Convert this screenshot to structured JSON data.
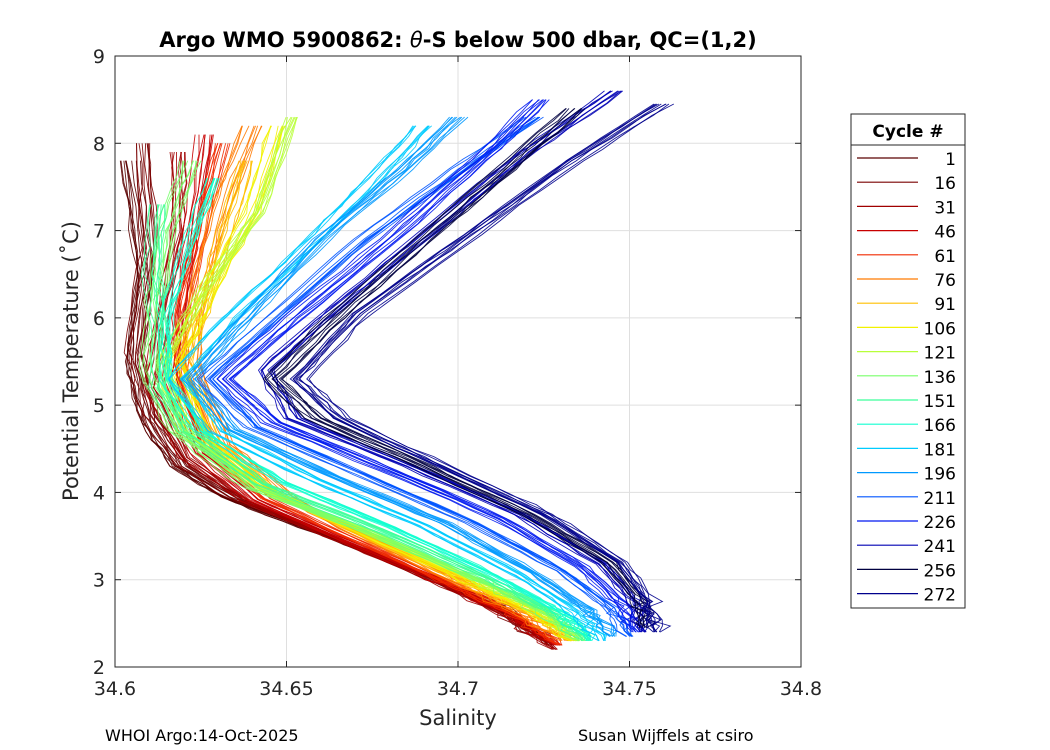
{
  "chart_data": {
    "type": "line",
    "title_prefix": "Argo WMO 5900862: ",
    "title_theta": "θ",
    "title_suffix": "-S below 500 dbar,  QC=(1,2)",
    "xlabel": "Salinity",
    "ylabel": "Potential Temperature (˚C)",
    "xlim": [
      34.6,
      34.8
    ],
    "ylim": [
      2,
      9
    ],
    "xticks": [
      34.6,
      34.65,
      34.7,
      34.75,
      34.8
    ],
    "xtick_labels": [
      "34.6",
      "34.65",
      "34.7",
      "34.75",
      "34.8"
    ],
    "yticks": [
      2,
      3,
      4,
      5,
      6,
      7,
      8,
      9
    ],
    "ytick_labels": [
      "2",
      "3",
      "4",
      "5",
      "6",
      "7",
      "8",
      "9"
    ],
    "grid": true,
    "legend_title": "Cycle #",
    "legend_position": "right",
    "legend": [
      {
        "cycle": "1",
        "color": "#5a0000"
      },
      {
        "cycle": "16",
        "color": "#7a0000"
      },
      {
        "cycle": "31",
        "color": "#a00000"
      },
      {
        "cycle": "46",
        "color": "#c80000"
      },
      {
        "cycle": "61",
        "color": "#f02a00"
      },
      {
        "cycle": "76",
        "color": "#ff7a00"
      },
      {
        "cycle": "91",
        "color": "#ffbf00"
      },
      {
        "cycle": "106",
        "color": "#f2f200"
      },
      {
        "cycle": "121",
        "color": "#b8ff3a"
      },
      {
        "cycle": "136",
        "color": "#78ff6a"
      },
      {
        "cycle": "151",
        "color": "#3cff9a"
      },
      {
        "cycle": "166",
        "color": "#12ffd0"
      },
      {
        "cycle": "181",
        "color": "#00ccff"
      },
      {
        "cycle": "196",
        "color": "#0099ff"
      },
      {
        "cycle": "211",
        "color": "#0055ff"
      },
      {
        "cycle": "226",
        "color": "#0018f0"
      },
      {
        "cycle": "241",
        "color": "#0000b4"
      },
      {
        "cycle": "256",
        "color": "#000040"
      },
      {
        "cycle": "272",
        "color": "#00008c"
      }
    ],
    "series": [
      {
        "name": "1",
        "color": "#5a0000",
        "points": [
          [
            34.604,
            7.8
          ],
          [
            34.608,
            6.5
          ],
          [
            34.605,
            5.5
          ],
          [
            34.609,
            4.8
          ],
          [
            34.618,
            4.3
          ],
          [
            34.632,
            3.95
          ],
          [
            34.655,
            3.6
          ],
          [
            34.688,
            3.1
          ],
          [
            34.712,
            2.7
          ],
          [
            34.726,
            2.3
          ]
        ]
      },
      {
        "name": "16",
        "color": "#7a0000",
        "points": [
          [
            34.608,
            8.0
          ],
          [
            34.61,
            6.8
          ],
          [
            34.606,
            5.6
          ],
          [
            34.61,
            4.9
          ],
          [
            34.62,
            4.3
          ],
          [
            34.636,
            3.92
          ],
          [
            34.66,
            3.55
          ],
          [
            34.69,
            3.05
          ],
          [
            34.712,
            2.65
          ],
          [
            34.727,
            2.25
          ]
        ]
      },
      {
        "name": "31",
        "color": "#a00000",
        "points": [
          [
            34.618,
            7.9
          ],
          [
            34.618,
            7.0
          ],
          [
            34.613,
            6.0
          ],
          [
            34.61,
            5.2
          ],
          [
            34.62,
            4.4
          ],
          [
            34.638,
            3.9
          ],
          [
            34.662,
            3.5
          ],
          [
            34.692,
            3.0
          ],
          [
            34.714,
            2.6
          ],
          [
            34.728,
            2.2
          ]
        ]
      },
      {
        "name": "46",
        "color": "#c80000",
        "points": [
          [
            34.626,
            8.1
          ],
          [
            34.622,
            7.0
          ],
          [
            34.618,
            6.0
          ],
          [
            34.616,
            5.3
          ],
          [
            34.624,
            4.45
          ],
          [
            34.64,
            3.92
          ],
          [
            34.664,
            3.5
          ],
          [
            34.694,
            3.0
          ],
          [
            34.715,
            2.6
          ],
          [
            34.729,
            2.25
          ]
        ]
      },
      {
        "name": "61",
        "color": "#f02a00",
        "points": [
          [
            34.632,
            8.0
          ],
          [
            34.626,
            7.0
          ],
          [
            34.62,
            6.0
          ],
          [
            34.62,
            5.4
          ],
          [
            34.628,
            4.5
          ],
          [
            34.645,
            3.93
          ],
          [
            34.668,
            3.5
          ],
          [
            34.697,
            2.98
          ],
          [
            34.717,
            2.6
          ],
          [
            34.73,
            2.25
          ]
        ]
      },
      {
        "name": "76",
        "color": "#ff7a00",
        "points": [
          [
            34.64,
            8.2
          ],
          [
            34.63,
            7.2
          ],
          [
            34.624,
            6.2
          ],
          [
            34.622,
            5.5
          ],
          [
            34.632,
            4.55
          ],
          [
            34.65,
            3.95
          ],
          [
            34.672,
            3.5
          ],
          [
            34.7,
            2.98
          ],
          [
            34.72,
            2.6
          ],
          [
            34.731,
            2.3
          ]
        ]
      },
      {
        "name": "91",
        "color": "#ffbf00",
        "points": [
          [
            34.638,
            7.8
          ],
          [
            34.632,
            7.0
          ],
          [
            34.626,
            6.2
          ],
          [
            34.62,
            5.5
          ],
          [
            34.628,
            4.6
          ],
          [
            34.646,
            4.0
          ],
          [
            34.672,
            3.52
          ],
          [
            34.702,
            2.98
          ],
          [
            34.722,
            2.6
          ],
          [
            34.733,
            2.3
          ]
        ]
      },
      {
        "name": "106",
        "color": "#f2f200",
        "points": [
          [
            34.648,
            8.2
          ],
          [
            34.64,
            7.2
          ],
          [
            34.628,
            6.3
          ],
          [
            34.618,
            5.5
          ],
          [
            34.626,
            4.6
          ],
          [
            34.646,
            4.0
          ],
          [
            34.674,
            3.52
          ],
          [
            34.704,
            2.98
          ],
          [
            34.724,
            2.6
          ],
          [
            34.734,
            2.3
          ]
        ]
      },
      {
        "name": "121",
        "color": "#b8ff3a",
        "points": [
          [
            34.652,
            8.3
          ],
          [
            34.642,
            7.2
          ],
          [
            34.626,
            6.3
          ],
          [
            34.614,
            5.5
          ],
          [
            34.62,
            4.7
          ],
          [
            34.642,
            4.05
          ],
          [
            34.674,
            3.55
          ],
          [
            34.706,
            3.0
          ],
          [
            34.726,
            2.6
          ],
          [
            34.735,
            2.3
          ]
        ]
      },
      {
        "name": "136",
        "color": "#78ff6a",
        "points": [
          [
            34.622,
            7.8
          ],
          [
            34.615,
            7.0
          ],
          [
            34.612,
            6.2
          ],
          [
            34.61,
            5.4
          ],
          [
            34.618,
            4.7
          ],
          [
            34.64,
            4.05
          ],
          [
            34.674,
            3.55
          ],
          [
            34.706,
            3.0
          ],
          [
            34.727,
            2.6
          ],
          [
            34.736,
            2.3
          ]
        ]
      },
      {
        "name": "151",
        "color": "#3cff9a",
        "points": [
          [
            34.612,
            7.3
          ],
          [
            34.61,
            6.5
          ],
          [
            34.613,
            5.8
          ],
          [
            34.612,
            5.2
          ],
          [
            34.62,
            4.7
          ],
          [
            34.642,
            4.1
          ],
          [
            34.676,
            3.58
          ],
          [
            34.708,
            3.02
          ],
          [
            34.728,
            2.6
          ],
          [
            34.737,
            2.3
          ]
        ]
      },
      {
        "name": "166",
        "color": "#12ffd0",
        "points": [
          [
            34.628,
            7.6
          ],
          [
            34.62,
            6.8
          ],
          [
            34.614,
            6.0
          ],
          [
            34.614,
            5.3
          ],
          [
            34.624,
            4.7
          ],
          [
            34.648,
            4.12
          ],
          [
            34.68,
            3.6
          ],
          [
            34.71,
            3.05
          ],
          [
            34.73,
            2.62
          ],
          [
            34.738,
            2.3
          ]
        ]
      },
      {
        "name": "181",
        "color": "#00ccff",
        "points": [
          [
            34.69,
            8.2
          ],
          [
            34.676,
            7.6
          ],
          [
            34.656,
            6.8
          ],
          [
            34.634,
            6.0
          ],
          [
            34.618,
            5.3
          ],
          [
            34.63,
            4.7
          ],
          [
            34.658,
            4.15
          ],
          [
            34.69,
            3.62
          ],
          [
            34.718,
            3.05
          ],
          [
            34.735,
            2.62
          ],
          [
            34.742,
            2.3
          ]
        ]
      },
      {
        "name": "196",
        "color": "#0099ff",
        "points": [
          [
            34.7,
            8.3
          ],
          [
            34.684,
            7.7
          ],
          [
            34.66,
            6.9
          ],
          [
            34.638,
            6.0
          ],
          [
            34.622,
            5.3
          ],
          [
            34.634,
            4.72
          ],
          [
            34.664,
            4.18
          ],
          [
            34.696,
            3.65
          ],
          [
            34.722,
            3.08
          ],
          [
            34.738,
            2.65
          ],
          [
            34.745,
            2.35
          ]
        ]
      },
      {
        "name": "211",
        "color": "#0055ff",
        "points": [
          [
            34.722,
            8.3
          ],
          [
            34.7,
            7.7
          ],
          [
            34.672,
            6.9
          ],
          [
            34.646,
            6.0
          ],
          [
            34.626,
            5.3
          ],
          [
            34.64,
            4.75
          ],
          [
            34.672,
            4.2
          ],
          [
            34.704,
            3.65
          ],
          [
            34.73,
            3.1
          ],
          [
            34.744,
            2.68
          ],
          [
            34.75,
            2.35
          ]
        ]
      },
      {
        "name": "226",
        "color": "#0018f0",
        "points": [
          [
            34.724,
            8.5
          ],
          [
            34.706,
            7.8
          ],
          [
            34.68,
            6.9
          ],
          [
            34.652,
            6.0
          ],
          [
            34.632,
            5.3
          ],
          [
            34.646,
            4.8
          ],
          [
            34.68,
            4.25
          ],
          [
            34.712,
            3.7
          ],
          [
            34.736,
            3.15
          ],
          [
            34.748,
            2.7
          ],
          [
            34.752,
            2.4
          ]
        ]
      },
      {
        "name": "241",
        "color": "#0000b4",
        "points": [
          [
            34.746,
            8.6
          ],
          [
            34.72,
            7.9
          ],
          [
            34.692,
            7.0
          ],
          [
            34.664,
            6.1
          ],
          [
            34.644,
            5.4
          ],
          [
            34.652,
            4.85
          ],
          [
            34.686,
            4.3
          ],
          [
            34.718,
            3.75
          ],
          [
            34.742,
            3.18
          ],
          [
            34.752,
            2.72
          ],
          [
            34.754,
            2.4
          ]
        ]
      },
      {
        "name": "256",
        "color": "#000040",
        "points": [
          [
            34.734,
            8.4
          ],
          [
            34.714,
            7.7
          ],
          [
            34.69,
            6.9
          ],
          [
            34.664,
            6.0
          ],
          [
            34.646,
            5.3
          ],
          [
            34.658,
            4.85
          ],
          [
            34.69,
            4.3
          ],
          [
            34.72,
            3.75
          ],
          [
            34.744,
            3.2
          ],
          [
            34.753,
            2.75
          ],
          [
            34.754,
            2.45
          ]
        ]
      },
      {
        "name": "272",
        "color": "#00008c",
        "points": [
          [
            34.76,
            8.45
          ],
          [
            34.734,
            7.8
          ],
          [
            34.704,
            6.95
          ],
          [
            34.672,
            6.05
          ],
          [
            34.654,
            5.3
          ],
          [
            34.666,
            4.85
          ],
          [
            34.696,
            4.3
          ],
          [
            34.726,
            3.75
          ],
          [
            34.748,
            3.2
          ],
          [
            34.756,
            2.75
          ],
          [
            34.758,
            2.4
          ]
        ]
      }
    ]
  },
  "footer": {
    "left": "WHOI Argo:14-Oct-2025",
    "right": "Susan Wijffels at csiro"
  }
}
